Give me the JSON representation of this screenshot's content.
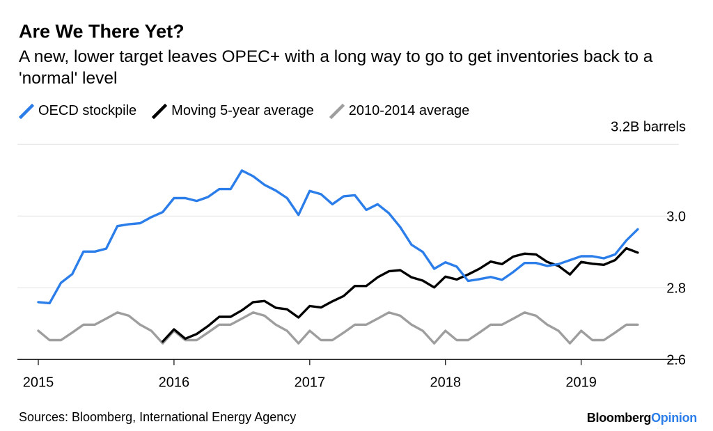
{
  "brand": {
    "main": "Bloomberg",
    "accent": "Opinion"
  },
  "source": "Sources: Bloomberg, International Energy Agency",
  "chart_data": {
    "type": "line",
    "title": "Are We There Yet?",
    "subtitle": "A new, lower target leaves OPEC+ with a long way to go to get inventories back to a 'normal' level",
    "unit_label": "3.2B barrels",
    "xlabel": "",
    "ylabel": "",
    "x_ticks": [
      "2015",
      "2016",
      "2017",
      "2018",
      "2019"
    ],
    "y_ticks": [
      "2.6",
      "2.8",
      "3.0"
    ],
    "y_tick_values": [
      2.6,
      2.8,
      3.0
    ],
    "ylim": [
      2.6,
      3.2
    ],
    "grid": true,
    "legend_position": "top-left",
    "series": [
      {
        "name": "OECD stockpile",
        "color": "#2b7de9",
        "x": [
          2015.0,
          2015.083,
          2015.167,
          2015.25,
          2015.333,
          2015.417,
          2015.5,
          2015.583,
          2015.667,
          2015.75,
          2015.833,
          2015.917,
          2016.0,
          2016.083,
          2016.167,
          2016.25,
          2016.333,
          2016.417,
          2016.5,
          2016.583,
          2016.667,
          2016.75,
          2016.833,
          2016.917,
          2017.0,
          2017.083,
          2017.167,
          2017.25,
          2017.333,
          2017.417,
          2017.5,
          2017.583,
          2017.667,
          2017.75,
          2017.833,
          2017.917,
          2018.0,
          2018.083,
          2018.167,
          2018.25,
          2018.333,
          2018.417,
          2018.5,
          2018.583,
          2018.667,
          2018.75,
          2018.833,
          2018.917,
          2019.0,
          2019.083,
          2019.167,
          2019.25,
          2019.333,
          2019.417
        ],
        "values": [
          2.76,
          2.757,
          2.814,
          2.838,
          2.901,
          2.901,
          2.909,
          2.972,
          2.977,
          2.98,
          2.997,
          3.011,
          3.05,
          3.05,
          3.042,
          3.053,
          3.075,
          3.075,
          3.127,
          3.111,
          3.087,
          3.071,
          3.05,
          3.003,
          3.07,
          3.061,
          3.033,
          3.055,
          3.058,
          3.017,
          3.033,
          3.008,
          2.969,
          2.92,
          2.9,
          2.853,
          2.871,
          2.859,
          2.819,
          2.824,
          2.83,
          2.822,
          2.844,
          2.869,
          2.869,
          2.861,
          2.866,
          2.877,
          2.888,
          2.888,
          2.882,
          2.893,
          2.932,
          2.963
        ]
      },
      {
        "name": "Moving 5-year average",
        "color": "#000000",
        "x": [
          2015.917,
          2016.0,
          2016.083,
          2016.167,
          2016.25,
          2016.333,
          2016.417,
          2016.5,
          2016.583,
          2016.667,
          2016.75,
          2016.833,
          2016.917,
          2017.0,
          2017.083,
          2017.167,
          2017.25,
          2017.333,
          2017.417,
          2017.5,
          2017.583,
          2017.667,
          2017.75,
          2017.833,
          2017.917,
          2018.0,
          2018.083,
          2018.167,
          2018.25,
          2018.333,
          2018.417,
          2018.5,
          2018.583,
          2018.667,
          2018.75,
          2018.833,
          2018.917,
          2019.0,
          2019.083,
          2019.167,
          2019.25,
          2019.333,
          2019.417
        ],
        "values": [
          2.65,
          2.684,
          2.658,
          2.671,
          2.693,
          2.719,
          2.719,
          2.737,
          2.76,
          2.763,
          2.744,
          2.74,
          2.717,
          2.749,
          2.745,
          2.762,
          2.777,
          2.805,
          2.805,
          2.829,
          2.846,
          2.849,
          2.829,
          2.82,
          2.801,
          2.831,
          2.823,
          2.837,
          2.853,
          2.873,
          2.866,
          2.887,
          2.895,
          2.893,
          2.872,
          2.861,
          2.837,
          2.872,
          2.867,
          2.864,
          2.877,
          2.91,
          2.898
        ]
      },
      {
        "name": "2010-2014 average",
        "color": "#9e9e9e",
        "x": [
          2015.0,
          2015.083,
          2015.167,
          2015.25,
          2015.333,
          2015.417,
          2015.5,
          2015.583,
          2015.667,
          2015.75,
          2015.833,
          2015.917,
          2016.0,
          2016.083,
          2016.167,
          2016.25,
          2016.333,
          2016.417,
          2016.5,
          2016.583,
          2016.667,
          2016.75,
          2016.833,
          2016.917,
          2017.0,
          2017.083,
          2017.167,
          2017.25,
          2017.333,
          2017.417,
          2017.5,
          2017.583,
          2017.667,
          2017.75,
          2017.833,
          2017.917,
          2018.0,
          2018.083,
          2018.167,
          2018.25,
          2018.333,
          2018.417,
          2018.5,
          2018.583,
          2018.667,
          2018.75,
          2018.833,
          2018.917,
          2019.0,
          2019.083,
          2019.167,
          2019.25,
          2019.333,
          2019.417
        ],
        "values": [
          2.68,
          2.654,
          2.654,
          2.675,
          2.697,
          2.697,
          2.714,
          2.731,
          2.722,
          2.697,
          2.68,
          2.645,
          2.68,
          2.654,
          2.654,
          2.675,
          2.697,
          2.697,
          2.714,
          2.731,
          2.722,
          2.697,
          2.68,
          2.645,
          2.68,
          2.654,
          2.654,
          2.675,
          2.697,
          2.697,
          2.714,
          2.731,
          2.722,
          2.697,
          2.68,
          2.645,
          2.68,
          2.654,
          2.654,
          2.675,
          2.697,
          2.697,
          2.714,
          2.731,
          2.722,
          2.697,
          2.68,
          2.645,
          2.68,
          2.654,
          2.654,
          2.675,
          2.697,
          2.697
        ]
      }
    ]
  }
}
